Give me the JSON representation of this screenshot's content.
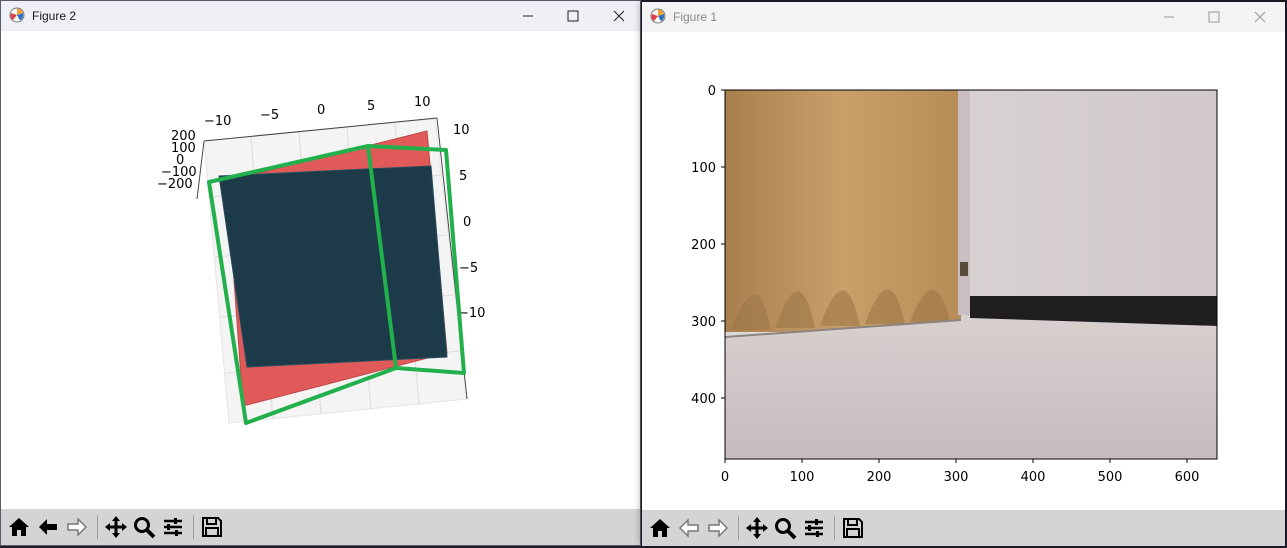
{
  "figure2": {
    "title": "Figure 2",
    "axes3d": {
      "x_ticks": [
        "−10",
        "−5",
        "0",
        "5",
        "10"
      ],
      "y_ticks": [
        "10",
        "5",
        "0",
        "−5",
        "−10"
      ],
      "z_ticks": [
        "200",
        "100",
        "0",
        "−100",
        "−200"
      ]
    }
  },
  "figure1": {
    "title": "Figure 1",
    "image_axes": {
      "x_ticks": [
        "0",
        "100",
        "200",
        "300",
        "400",
        "500",
        "600"
      ],
      "y_ticks": [
        "0",
        "100",
        "200",
        "300",
        "400"
      ]
    }
  },
  "toolbar_icons": [
    "home-icon",
    "back-arrow-icon",
    "forward-arrow-icon",
    "pan-icon",
    "zoom-icon",
    "configure-subplots-icon",
    "save-icon"
  ],
  "colors": {
    "plane_red": "#e05a5a",
    "plane_teal": "#1c3a47",
    "outline_green": "#22b04c",
    "toolbar_bg": "#d4d4d4"
  }
}
